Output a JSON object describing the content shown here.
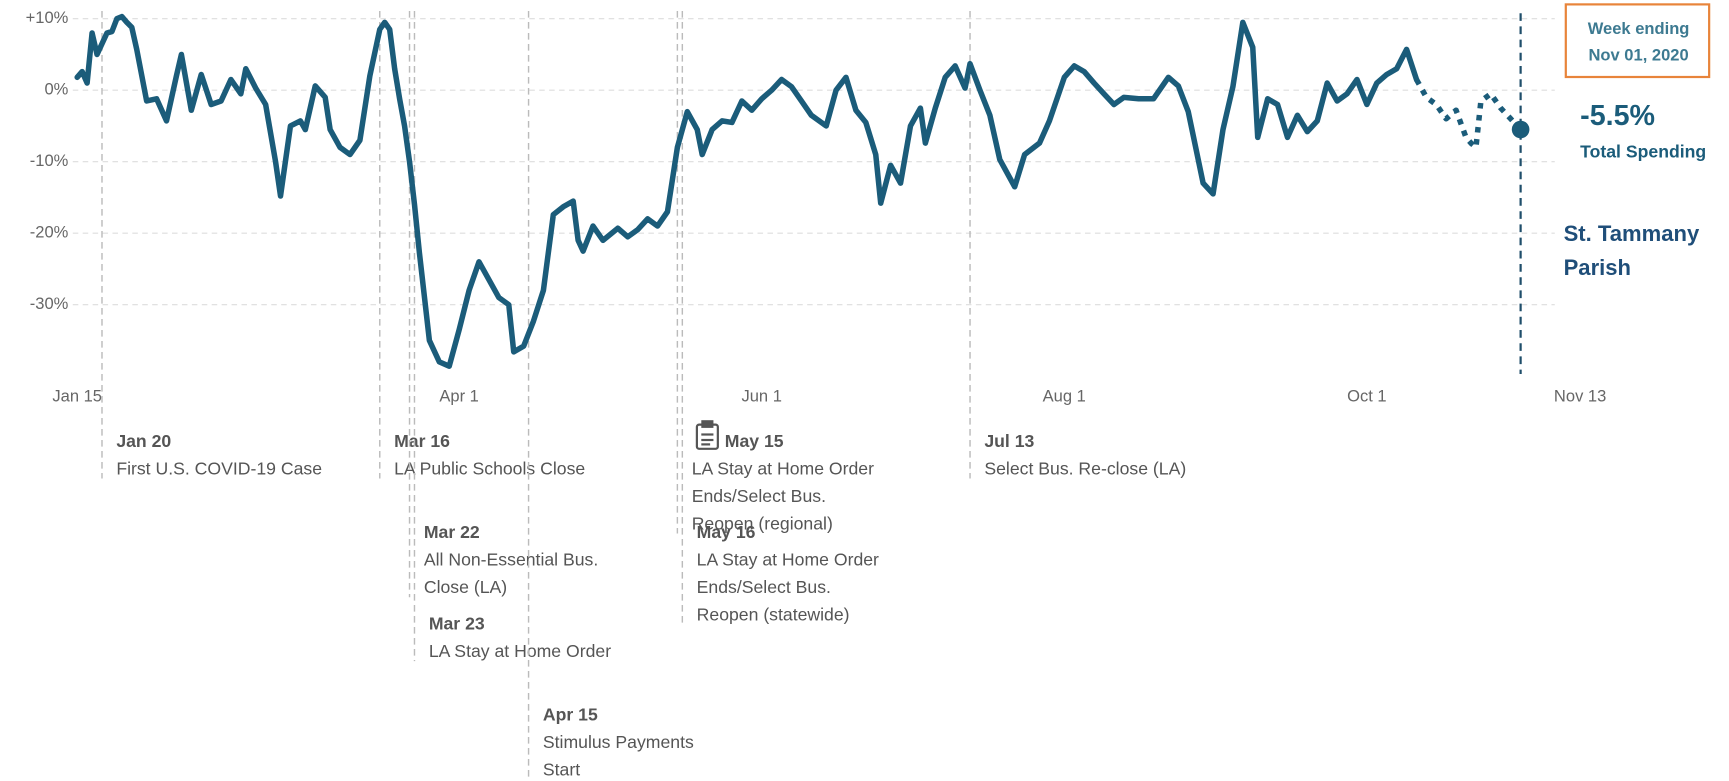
{
  "chart_data": {
    "type": "line",
    "region": "St. Tammany Parish",
    "week_label": "Week ending",
    "week_date": "Nov 01, 2020",
    "xlim": [
      "Jan 15",
      "Nov 13"
    ],
    "xticks": [
      "Jan 15",
      "Apr 1",
      "Jun 1",
      "Aug 1",
      "Oct 1",
      "Nov 13"
    ],
    "ylim": [
      -40,
      10
    ],
    "yticks": [
      {
        "value": 10,
        "label": "+10%"
      },
      {
        "value": 0,
        "label": "0%"
      },
      {
        "value": -10,
        "label": "-10%"
      },
      {
        "value": -20,
        "label": "-20%"
      },
      {
        "value": -30,
        "label": "-30%"
      }
    ],
    "grid": true,
    "dotted_from": "Oct 11",
    "x": [
      "Jan 15",
      "Jan 16",
      "Jan 17",
      "Jan 18",
      "Jan 19",
      "Jan 20",
      "Jan 21",
      "Jan 22",
      "Jan 23",
      "Jan 24",
      "Jan 25",
      "Jan 26",
      "Jan 27",
      "Jan 29",
      "Jan 31",
      "Feb 2",
      "Feb 4",
      "Feb 5",
      "Feb 7",
      "Feb 9",
      "Feb 11",
      "Feb 13",
      "Feb 15",
      "Feb 17",
      "Feb 18",
      "Feb 20",
      "Feb 22",
      "Feb 24",
      "Feb 25",
      "Feb 27",
      "Feb 29",
      "Mar 1",
      "Mar 3",
      "Mar 5",
      "Mar 6",
      "Mar 8",
      "Mar 10",
      "Mar 12",
      "Mar 14",
      "Mar 16",
      "Mar 17",
      "Mar 18",
      "Mar 19",
      "Mar 20",
      "Mar 21",
      "Mar 22",
      "Mar 23",
      "Mar 24",
      "Mar 26",
      "Mar 28",
      "Mar 30",
      "Apr 1",
      "Apr 3",
      "Apr 5",
      "Apr 7",
      "Apr 9",
      "Apr 11",
      "Apr 12",
      "Apr 14",
      "Apr 16",
      "Apr 18",
      "Apr 20",
      "Apr 22",
      "Apr 24",
      "Apr 25",
      "Apr 26",
      "Apr 28",
      "Apr 30",
      "May 3",
      "May 5",
      "May 7",
      "May 9",
      "May 11",
      "May 13",
      "May 15",
      "May 17",
      "May 19",
      "May 20",
      "May 22",
      "May 24",
      "May 26",
      "May 28",
      "May 30",
      "Jun 1",
      "Jun 3",
      "Jun 5",
      "Jun 7",
      "Jun 9",
      "Jun 11",
      "Jun 14",
      "Jun 16",
      "Jun 18",
      "Jun 20",
      "Jun 22",
      "Jun 24",
      "Jun 25",
      "Jun 27",
      "Jun 29",
      "Jul 1",
      "Jul 3",
      "Jul 4",
      "Jul 6",
      "Jul 8",
      "Jul 10",
      "Jul 12",
      "Jul 13",
      "Jul 15",
      "Jul 17",
      "Jul 19",
      "Jul 22",
      "Jul 24",
      "Jul 27",
      "Jul 29",
      "Aug 1",
      "Aug 3",
      "Aug 5",
      "Aug 7",
      "Aug 9",
      "Aug 11",
      "Aug 13",
      "Aug 16",
      "Aug 19",
      "Aug 22",
      "Aug 24",
      "Aug 26",
      "Aug 29",
      "Aug 31",
      "Sep 2",
      "Sep 4",
      "Sep 6",
      "Sep 8",
      "Sep 9",
      "Sep 11",
      "Sep 13",
      "Sep 15",
      "Sep 17",
      "Sep 19",
      "Sep 21",
      "Sep 23",
      "Sep 25",
      "Sep 27",
      "Sep 29",
      "Oct 1",
      "Oct 3",
      "Oct 5",
      "Oct 7",
      "Oct 9",
      "Oct 11",
      "Oct 13",
      "Oct 15",
      "Oct 17",
      "Oct 19",
      "Oct 21",
      "Oct 22",
      "Oct 23",
      "Oct 24",
      "Oct 26",
      "Oct 28",
      "Oct 30",
      "Nov 1"
    ],
    "series": [
      {
        "name": "Total Spending",
        "color": "#1b5c7a",
        "end_label": "-5.5%",
        "values": [
          1.8,
          2.6,
          1.0,
          8.0,
          5.0,
          6.5,
          8.0,
          8.2,
          10.0,
          10.3,
          9.5,
          8.8,
          5.7,
          -1.5,
          -1.2,
          -4.3,
          2.0,
          5.0,
          -2.8,
          2.2,
          -2.0,
          -1.5,
          1.5,
          -0.5,
          3.0,
          0.3,
          -2.0,
          -10.0,
          -14.8,
          -5.0,
          -4.3,
          -5.5,
          0.6,
          -1.0,
          -5.5,
          -8.0,
          -9.0,
          -7.0,
          2.0,
          8.5,
          9.5,
          8.5,
          3.0,
          -1.2,
          -5.0,
          -10.0,
          -16.0,
          -22.8,
          -35.0,
          -38.0,
          -38.6,
          -33.5,
          -28.0,
          -24.0,
          -26.5,
          -29.0,
          -30.0,
          -36.6,
          -35.8,
          -32.3,
          -28.0,
          -17.4,
          -16.3,
          -15.5,
          -21.0,
          -22.5,
          -19.0,
          -21.0,
          -19.3,
          -20.5,
          -19.5,
          -18.0,
          -19.0,
          -17.0,
          -8.0,
          -3.0,
          -5.5,
          -9.0,
          -5.5,
          -4.3,
          -4.5,
          -1.5,
          -2.8,
          -1.2,
          0.0,
          1.5,
          0.5,
          -1.5,
          -3.5,
          -5.0,
          0.0,
          1.8,
          -2.8,
          -4.5,
          -9.0,
          -15.8,
          -10.5,
          -13.0,
          -5.0,
          -2.5,
          -7.4,
          -2.5,
          1.8,
          3.4,
          0.3,
          3.7,
          0.0,
          -3.5,
          -9.7,
          -13.5,
          -9.0,
          -7.4,
          -4.3,
          1.8,
          3.4,
          2.6,
          1.0,
          -0.5,
          -2.0,
          -1.0,
          -1.2,
          -1.2,
          1.8,
          0.6,
          -3.0,
          -13.0,
          -14.5,
          -5.5,
          0.5,
          9.5,
          6.0,
          -6.6,
          -1.2,
          -2.0,
          -6.6,
          -3.5,
          -5.8,
          -4.3,
          1.0,
          -1.5,
          -0.5,
          1.5,
          -2.0,
          1.0,
          2.2,
          3.0,
          5.7,
          1.5,
          -1.0,
          -2.0,
          -4.0,
          -2.8,
          -6.6,
          -7.4,
          -8.0,
          -1.5,
          -0.5,
          -2.5,
          -4.0,
          -5.5
        ]
      }
    ],
    "annotations": [
      {
        "date": "Jan 20",
        "text": [
          "First U.S. COVID-19 Case"
        ]
      },
      {
        "date": "Mar 16",
        "text": [
          "LA Public Schools Close"
        ]
      },
      {
        "date": "Mar 22",
        "text": [
          "All Non-Essential Bus.",
          "Close (LA)"
        ]
      },
      {
        "date": "Mar 23",
        "text": [
          "LA Stay at Home Order"
        ]
      },
      {
        "date": "Apr 15",
        "text": [
          "Stimulus Payments",
          "Start"
        ]
      },
      {
        "date": "May 15",
        "text": [
          "LA Stay at Home Order",
          "Ends/Select Bus.",
          "Reopen (regional)"
        ]
      },
      {
        "date": "May 16",
        "text": [
          "LA Stay at Home Order",
          "Ends/Select Bus.",
          "Reopen (statewide)"
        ]
      },
      {
        "date": "Jul 13",
        "text": [
          "Select Bus. Re-close (LA)"
        ]
      }
    ]
  }
}
